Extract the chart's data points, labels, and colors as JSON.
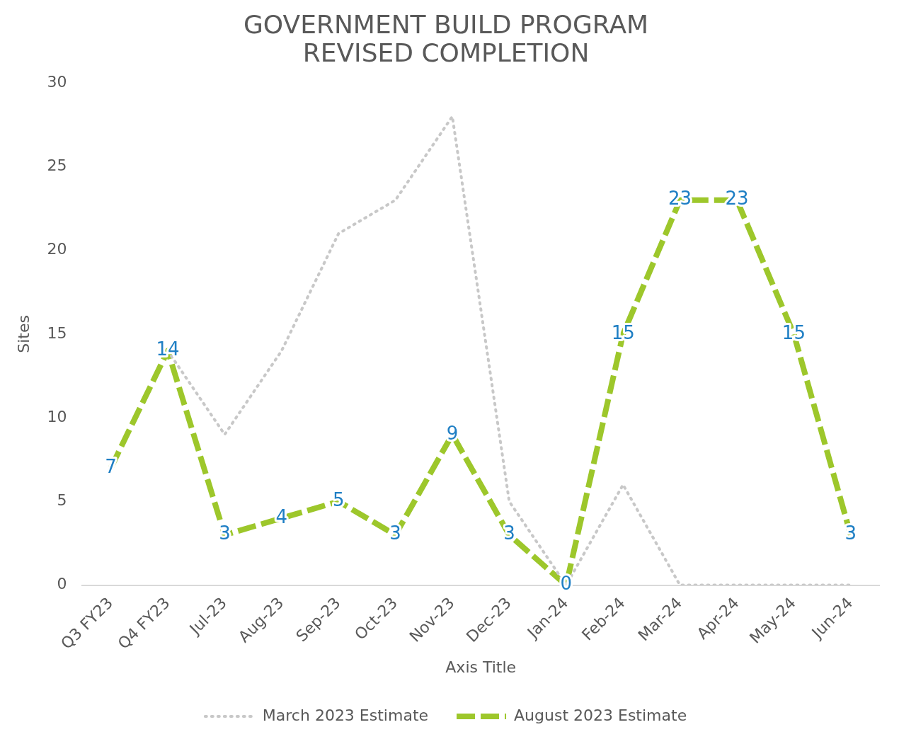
{
  "chart_data": {
    "type": "line",
    "title": [
      "GOVERNMENT BUILD PROGRAM",
      "REVISED COMPLETION"
    ],
    "xlabel": "Axis Title",
    "ylabel": "Sites",
    "categories": [
      "Q3 FY23",
      "Q4 FY23",
      "Jul-23",
      "Aug-23",
      "Sep-23",
      "Oct-23",
      "Nov-23",
      "Dec-23",
      "Jan-24",
      "Feb-24",
      "Mar-24",
      "Apr-24",
      "May-24",
      "Jun-24"
    ],
    "series": [
      {
        "name": "March 2023 Estimate",
        "color": "#c8c8c8",
        "line_style": "dotted",
        "values": [
          null,
          14,
          9,
          14,
          21,
          23,
          28,
          5,
          0,
          6,
          0,
          0,
          0,
          0
        ]
      },
      {
        "name": "August 2023 Estimate",
        "color": "#9dc72b",
        "line_style": "dashed",
        "values": [
          7,
          14,
          3,
          4,
          5,
          3,
          9,
          3,
          0,
          15,
          23,
          23,
          15,
          3
        ],
        "value_labels": [
          "7",
          "14",
          "3",
          "4",
          "5",
          "3",
          "9",
          "3",
          "0",
          "15",
          "23",
          "23",
          "15",
          "3"
        ]
      }
    ],
    "ylim": [
      0,
      30
    ],
    "yticks": [
      0,
      5,
      10,
      15,
      20,
      25,
      30
    ],
    "grid": false,
    "legend": "bottom"
  }
}
